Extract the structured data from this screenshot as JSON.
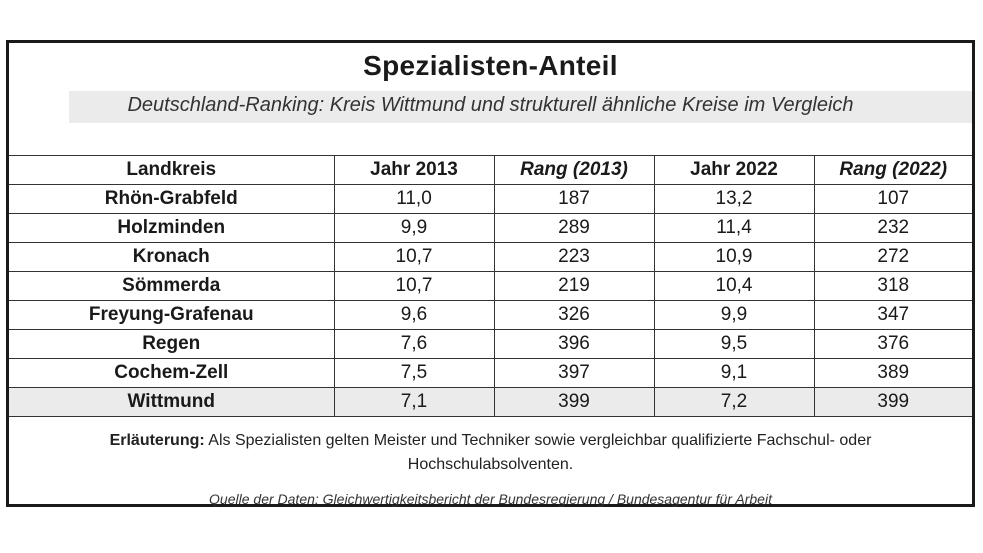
{
  "title": "Spezialisten-Anteil",
  "subtitle": "Deutschland-Ranking: Kreis Wittmund und strukturell ähnliche Kreise im Vergleich",
  "table": {
    "headers": [
      "Landkreis",
      "Jahr 2013",
      "Rang (2013)",
      "Jahr 2022",
      "Rang (2022)"
    ],
    "rows": [
      [
        "Rhön-Grabfeld",
        "11,0",
        "187",
        "13,2",
        "107"
      ],
      [
        "Holzminden",
        "9,9",
        "289",
        "11,4",
        "232"
      ],
      [
        "Kronach",
        "10,7",
        "223",
        "10,9",
        "272"
      ],
      [
        "Sömmerda",
        "10,7",
        "219",
        "10,4",
        "318"
      ],
      [
        "Freyung-Grafenau",
        "9,6",
        "326",
        "9,9",
        "347"
      ],
      [
        "Regen",
        "7,6",
        "396",
        "9,5",
        "376"
      ],
      [
        "Cochem-Zell",
        "7,5",
        "397",
        "9,1",
        "389"
      ],
      [
        "Wittmund",
        "7,1",
        "399",
        "7,2",
        "399"
      ]
    ]
  },
  "note": {
    "label": "Erläuterung:",
    "text": " Als Spezialisten gelten Meister und Techniker sowie vergleichbar qualifizierte Fachschul- oder Hochschulabsolventen."
  },
  "source": "Quelle der Daten: Gleichwertigkeitsbericht der Bundesregierung / Bundesagentur für Arbeit"
}
